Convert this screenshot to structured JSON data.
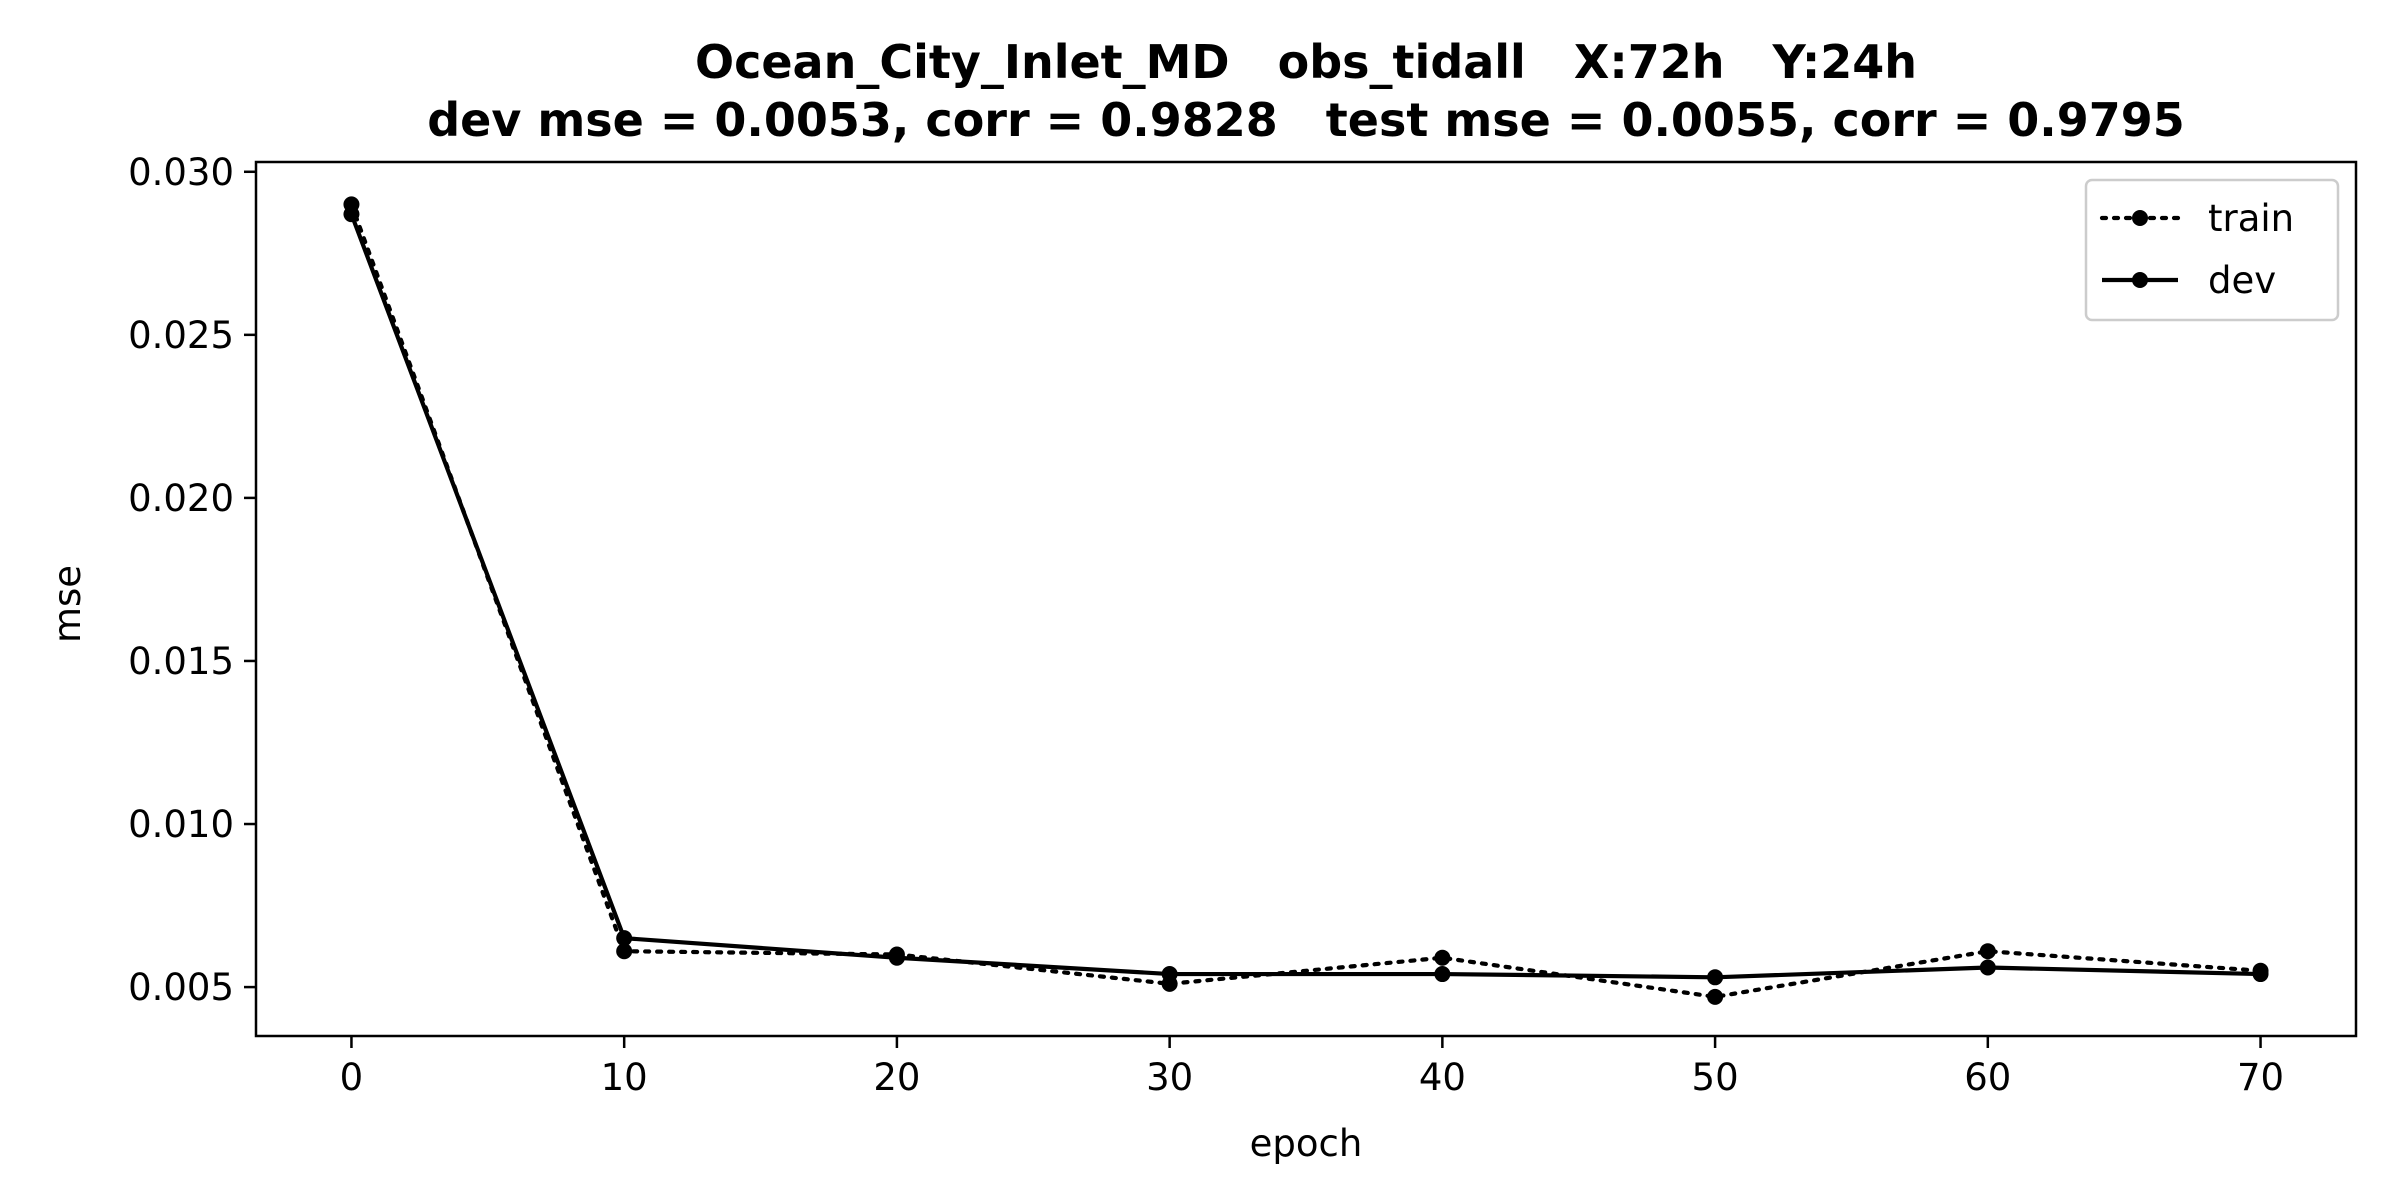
{
  "chart_data": {
    "type": "line",
    "title": "Ocean_City_Inlet_MD   obs_tidall   X:72h   Y:24h",
    "subtitle": "dev mse = 0.0053, corr = 0.9828   test mse = 0.0055, corr = 0.9795",
    "xlabel": "epoch",
    "ylabel": "mse",
    "x": [
      0,
      10,
      20,
      30,
      40,
      50,
      60,
      70
    ],
    "xlim": [
      -3.5,
      73.5
    ],
    "ylim": [
      0.0035,
      0.0303
    ],
    "xticks": [
      0,
      10,
      20,
      30,
      40,
      50,
      60,
      70
    ],
    "yticks": [
      0.005,
      0.01,
      0.015,
      0.02,
      0.025,
      0.03
    ],
    "ytick_labels": [
      "0.005",
      "0.010",
      "0.015",
      "0.020",
      "0.025",
      "0.030"
    ],
    "grid": false,
    "legend_position": "upper-right",
    "series": [
      {
        "name": "train",
        "style": "dotted",
        "color": "#000000",
        "values": [
          0.029,
          0.0061,
          0.006,
          0.0051,
          0.0059,
          0.0047,
          0.0061,
          0.0055
        ]
      },
      {
        "name": "dev",
        "style": "solid",
        "color": "#000000",
        "values": [
          0.0287,
          0.0065,
          0.0059,
          0.0054,
          0.0054,
          0.0053,
          0.0056,
          0.0054
        ]
      }
    ]
  }
}
